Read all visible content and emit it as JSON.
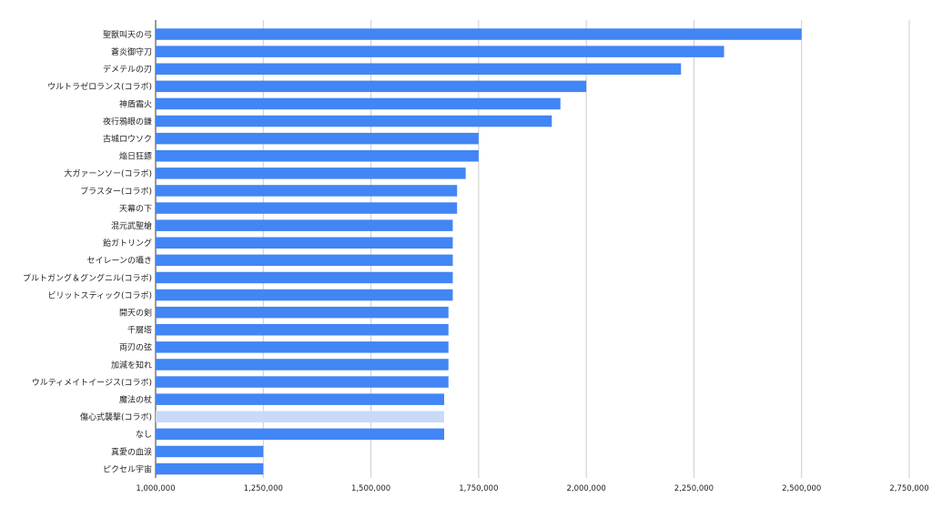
{
  "chart_data": {
    "type": "bar",
    "orientation": "horizontal",
    "title": "",
    "xlabel": "",
    "ylabel": "",
    "xlim": [
      1000000,
      2750000
    ],
    "xticks": [
      1000000,
      1250000,
      1500000,
      1750000,
      2000000,
      2250000,
      2500000,
      2750000
    ],
    "xtick_labels": [
      "1,000,000",
      "1,250,000",
      "1,500,000",
      "1,750,000",
      "2,000,000",
      "2,250,000",
      "2,500,000",
      "2,750,000"
    ],
    "grid": true,
    "legend": "none",
    "bar_color": "#4285f4",
    "highlight_color": "#c9daf8",
    "highlight_index": 22,
    "categories": [
      "聖獣叫天の弓",
      "蒼炎御守刀",
      "デメテルの刃",
      "ウルトラゼロランス(コラボ)",
      "神盾霜火",
      "夜行鴉眼の鎌",
      "古城ロウソク",
      "焔日狂鏢",
      "大ガァーンソー(コラボ)",
      "ブラスター(コラボ)",
      "天幕の下",
      "混元武聖槍",
      "飴ガトリング",
      "セイレーンの囁き",
      "ブルトガング＆グングニル(コラボ)",
      "ビリットスティック(コラボ)",
      "開天の剣",
      "千層塔",
      "両刃の弦",
      "加減を知れ",
      "ウルティメイトイージス(コラボ)",
      "魔法の杖",
      "傷心式襲撃(コラボ)",
      "なし",
      "真愛の血涙",
      "ピクセル宇宙"
    ],
    "values": [
      2500000,
      2320000,
      2220000,
      2000000,
      1940000,
      1920000,
      1750000,
      1750000,
      1720000,
      1700000,
      1700000,
      1690000,
      1690000,
      1690000,
      1690000,
      1690000,
      1680000,
      1680000,
      1680000,
      1680000,
      1680000,
      1670000,
      1670000,
      1670000,
      1250000,
      1250000
    ]
  }
}
